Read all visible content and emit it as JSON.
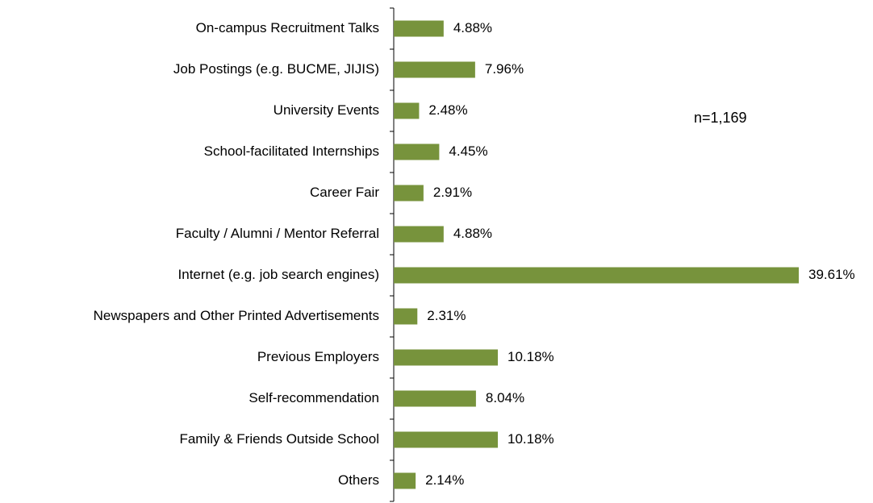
{
  "chart_data": {
    "type": "bar",
    "orientation": "horizontal",
    "annotation": "n=1,169",
    "color": "#77933c",
    "categories": [
      "On-campus Recruitment Talks",
      "Job Postings (e.g. BUCME, JIJIS)",
      "University Events",
      "School-facilitated Internships",
      "Career Fair",
      "Faculty / Alumni / Mentor Referral",
      "Internet (e.g. job search engines)",
      "Newspapers and Other Printed Advertisements",
      "Previous Employers",
      "Self-recommendation",
      "Family & Friends Outside School",
      "Others"
    ],
    "values": [
      4.88,
      7.96,
      2.48,
      4.45,
      2.91,
      4.88,
      39.61,
      2.31,
      10.18,
      8.04,
      10.18,
      2.14
    ],
    "value_labels": [
      "4.88%",
      "7.96%",
      "2.48%",
      "4.45%",
      "2.91%",
      "4.88%",
      "39.61%",
      "2.31%",
      "10.18%",
      "8.04%",
      "10.18%",
      "2.14%"
    ]
  }
}
